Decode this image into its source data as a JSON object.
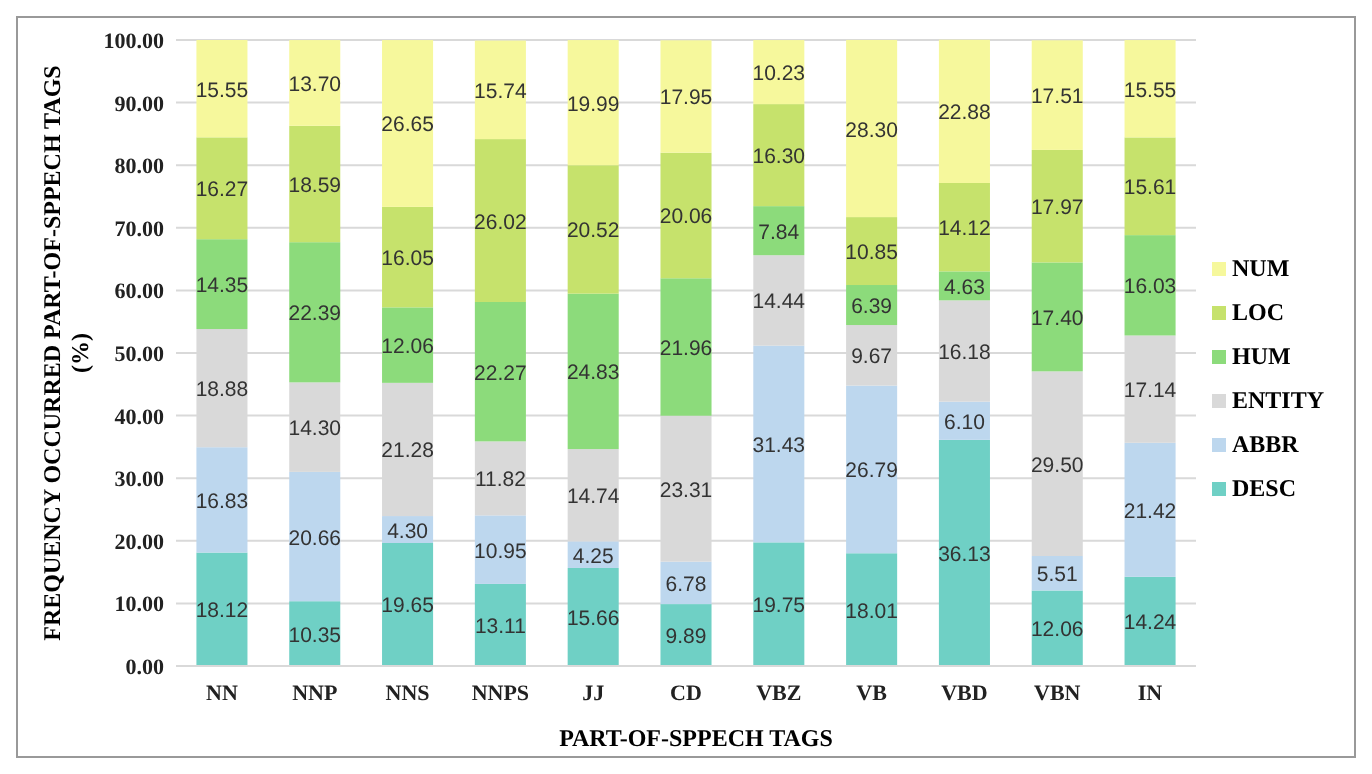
{
  "chart_data": {
    "type": "bar",
    "stacked": true,
    "xlabel": "PART-OF-SPPECH TAGS",
    "ylabel": "FREQUENCY  OCCURRED PART-OF-SPPECH TAGS (%)",
    "categories": [
      "NN",
      "NNP",
      "NNS",
      "NNPS",
      "JJ",
      "CD",
      "VBZ",
      "VB",
      "VBD",
      "VBN",
      "IN"
    ],
    "ylim": [
      0,
      100
    ],
    "yticks": [
      {
        "value": 0,
        "label": "0.00"
      },
      {
        "value": 10,
        "label": "10.00"
      },
      {
        "value": 20,
        "label": "20.00"
      },
      {
        "value": 30,
        "label": "30.00"
      },
      {
        "value": 40,
        "label": "40.00"
      },
      {
        "value": 50,
        "label": "50.00"
      },
      {
        "value": 60,
        "label": "60.00"
      },
      {
        "value": 70,
        "label": "70.00"
      },
      {
        "value": 80,
        "label": "80.00"
      },
      {
        "value": 90,
        "label": "90.00"
      },
      {
        "value": 100,
        "label": "100.00"
      }
    ],
    "grid": "y",
    "legend": "right",
    "series": [
      {
        "name": "DESC",
        "color": "#6fd0c5",
        "values": [
          18.12,
          10.35,
          19.65,
          13.11,
          15.66,
          9.89,
          19.75,
          18.01,
          36.13,
          12.06,
          14.24
        ],
        "value_labels": [
          "18.12",
          "10.35",
          "19.65",
          "13.11",
          "15.66",
          "9.89",
          "19.75",
          "18.01",
          "36.13",
          "12.06",
          "14.24"
        ]
      },
      {
        "name": "ABBR",
        "color": "#bdd7ee",
        "values": [
          16.83,
          20.66,
          4.3,
          10.95,
          4.25,
          6.78,
          31.43,
          26.79,
          6.1,
          5.51,
          21.42
        ],
        "value_labels": [
          "16.83",
          "20.66",
          "4.30",
          "10.95",
          "4.25",
          "6.78",
          "31.43",
          "26.79",
          "6.10",
          "5.51",
          "21.42"
        ]
      },
      {
        "name": "ENTITY",
        "color": "#d9d9d9",
        "values": [
          18.88,
          14.3,
          21.28,
          11.82,
          14.74,
          23.31,
          14.44,
          9.67,
          16.18,
          29.5,
          17.14
        ],
        "value_labels": [
          "18.88",
          "14.30",
          "21.28",
          "11.82",
          "14.74",
          "23.31",
          "14.44",
          "9.67",
          "16.18",
          "29.50",
          "17.14"
        ]
      },
      {
        "name": "HUM",
        "color": "#8cdb7b",
        "values": [
          14.35,
          22.39,
          12.06,
          22.27,
          24.83,
          21.96,
          7.84,
          6.39,
          4.63,
          17.4,
          16.03
        ],
        "value_labels": [
          "14.35",
          "22.39",
          "12.06",
          "22.27",
          "24.83",
          "21.96",
          "7.84",
          "6.39",
          "4.63",
          "17.40",
          "16.03"
        ]
      },
      {
        "name": "LOC",
        "color": "#c6e26c",
        "values": [
          16.27,
          18.59,
          16.05,
          26.02,
          20.52,
          20.06,
          16.3,
          10.85,
          14.12,
          17.97,
          15.61
        ],
        "value_labels": [
          "16.27",
          "18.59",
          "16.05",
          "26.02",
          "20.52",
          "20.06",
          "16.30",
          "10.85",
          "14.12",
          "17.97",
          "15.61"
        ]
      },
      {
        "name": "NUM",
        "color": "#f6f89c",
        "values": [
          15.55,
          13.7,
          26.65,
          15.74,
          19.99,
          17.95,
          10.23,
          28.3,
          22.88,
          17.51,
          15.55
        ],
        "value_labels": [
          "15.55",
          "13.70",
          "26.65",
          "15.74",
          "19.99",
          "17.95",
          "10.23",
          "28.30",
          "22.88",
          "17.51",
          "15.55"
        ]
      }
    ]
  }
}
